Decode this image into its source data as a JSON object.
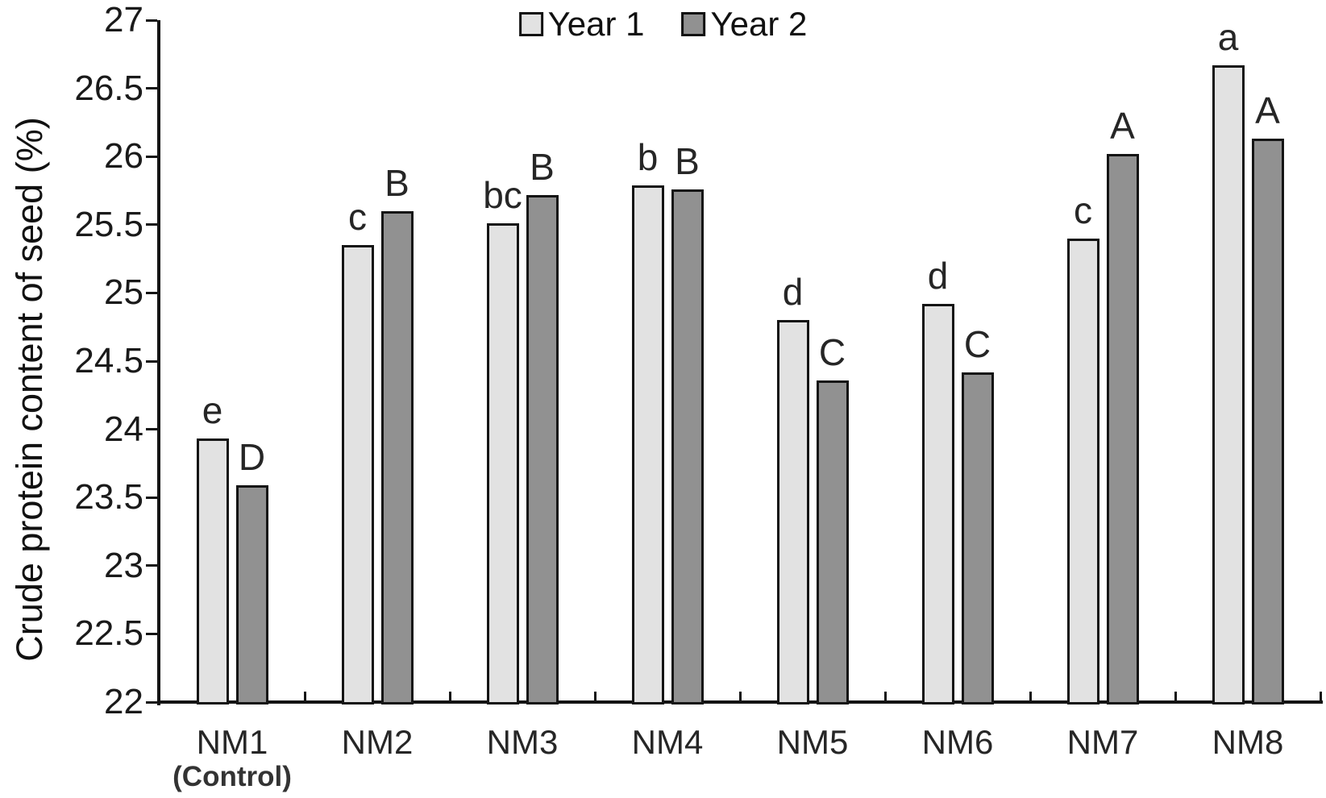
{
  "chart_data": {
    "type": "bar",
    "ylabel": "Crude protein content of seed (%)",
    "xlabel": "",
    "ylim": [
      22,
      27
    ],
    "ytick_step": 0.5,
    "grid": false,
    "legend_position": "top-center",
    "categories": [
      {
        "label": "NM1",
        "sublabel": "(Control)"
      },
      {
        "label": "NM2",
        "sublabel": ""
      },
      {
        "label": "NM3",
        "sublabel": ""
      },
      {
        "label": "NM4",
        "sublabel": ""
      },
      {
        "label": "NM5",
        "sublabel": ""
      },
      {
        "label": "NM6",
        "sublabel": ""
      },
      {
        "label": "NM7",
        "sublabel": ""
      },
      {
        "label": "NM8",
        "sublabel": ""
      }
    ],
    "series": [
      {
        "name": "Year 1",
        "color": "#e2e2e2",
        "values": [
          23.93,
          25.35,
          25.51,
          25.79,
          24.8,
          24.92,
          25.4,
          26.67
        ],
        "letters": [
          "e",
          "c",
          "bc",
          "b",
          "d",
          "d",
          "c",
          "a"
        ]
      },
      {
        "name": "Year 2",
        "color": "#919191",
        "values": [
          23.59,
          25.6,
          25.72,
          25.76,
          24.36,
          24.42,
          26.02,
          26.13
        ],
        "letters": [
          "D",
          "B",
          "B",
          "B",
          "C",
          "C",
          "A",
          "A"
        ]
      }
    ],
    "axis_color": "#141414"
  }
}
